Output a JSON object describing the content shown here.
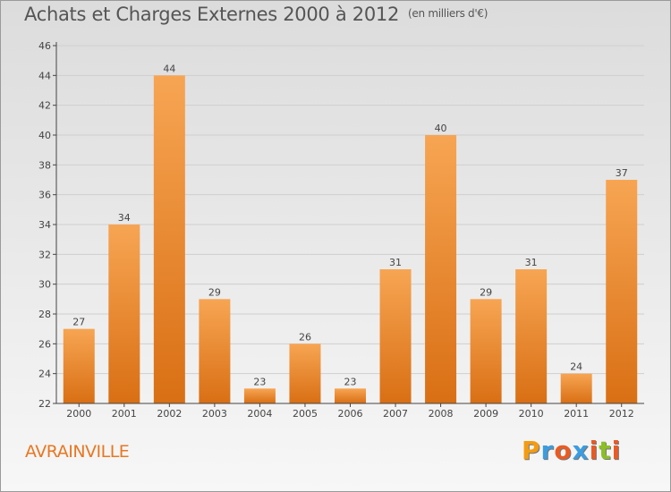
{
  "title": "Achats et Charges Externes 2000 à 2012",
  "unit_label": "(en milliers d'€)",
  "location": "AVRAINVILLE",
  "logo": {
    "letters": [
      "P",
      "r",
      "o",
      "x",
      "i",
      "t",
      "i"
    ],
    "colors": [
      "#f39c12",
      "#3b9de0",
      "#e85c24",
      "#3b9de0",
      "#e85c24",
      "#8cbf26",
      "#e85c24"
    ]
  },
  "colors": {
    "bar_top": "#f7a553",
    "bar_bottom": "#d96f14",
    "axis": "#444444",
    "grid": "#cfcfcf"
  },
  "chart_data": {
    "type": "bar",
    "categories": [
      "2000",
      "2001",
      "2002",
      "2003",
      "2004",
      "2005",
      "2006",
      "2007",
      "2008",
      "2009",
      "2010",
      "2011",
      "2012"
    ],
    "values": [
      27,
      34,
      44,
      29,
      23,
      26,
      23,
      31,
      40,
      29,
      31,
      24,
      37
    ],
    "ylim": [
      22,
      46
    ],
    "yticks": [
      22,
      24,
      26,
      28,
      30,
      32,
      34,
      36,
      38,
      40,
      42,
      44,
      46
    ],
    "grid": true
  }
}
